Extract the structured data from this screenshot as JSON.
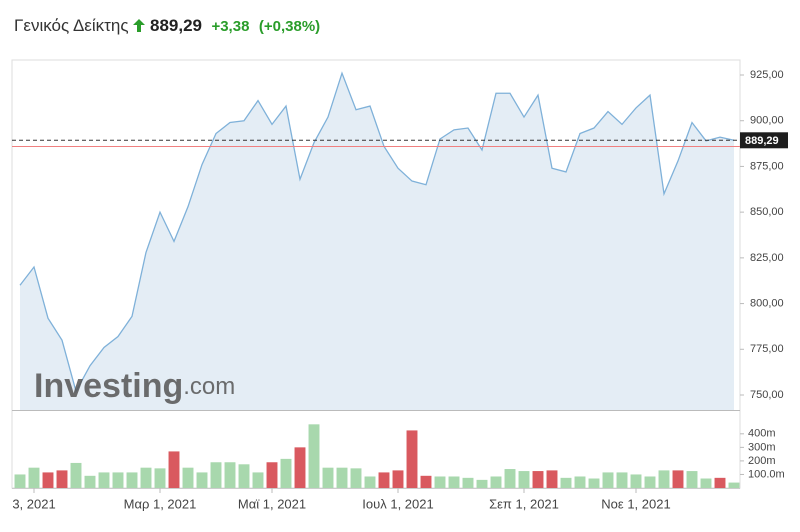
{
  "header": {
    "title": "Γενικός Δείκτης",
    "price": "889,29",
    "change": "+3,38",
    "change_pct": "(+0,38%)"
  },
  "watermark": {
    "brand": "Investing",
    "suffix": ".com"
  },
  "chart_data": [
    {
      "type": "area-line",
      "color": "#7fb1d9",
      "fill": "#e4edf5",
      "categories": [
        null,
        "3, 2021",
        null,
        null,
        null,
        null,
        null,
        null,
        null,
        null,
        "Μαρ 1, 2021",
        null,
        null,
        null,
        null,
        null,
        null,
        null,
        "Μαϊ 1, 2021",
        null,
        null,
        null,
        null,
        null,
        null,
        null,
        null,
        "Ιουλ 1, 2021",
        null,
        null,
        null,
        null,
        null,
        null,
        null,
        null,
        "Σεπ 1, 2021",
        null,
        null,
        null,
        null,
        null,
        null,
        null,
        "Νοε 1, 2021",
        null,
        null,
        null,
        null,
        null,
        null,
        null
      ],
      "values": [
        810,
        820,
        792,
        780,
        752,
        766,
        776,
        782,
        793,
        828,
        850,
        834,
        853,
        876,
        893,
        899,
        900,
        911,
        898,
        908,
        868,
        888,
        902,
        926,
        906,
        908,
        886,
        874,
        867,
        865,
        890,
        895,
        896,
        884,
        915,
        915,
        902,
        914,
        874,
        872,
        893,
        896,
        905,
        898,
        907,
        914,
        860,
        878,
        899,
        889,
        891,
        889.29
      ],
      "ylim": [
        741.8,
        933.2
      ],
      "yticks": [
        {
          "value": 750,
          "label": "750,00"
        },
        {
          "value": 775,
          "label": "775,00"
        },
        {
          "value": 800,
          "label": "800,00"
        },
        {
          "value": 825,
          "label": "825,00"
        },
        {
          "value": 850,
          "label": "850,00"
        },
        {
          "value": 875,
          "label": "875,00"
        },
        {
          "value": 900,
          "label": "900,00"
        },
        {
          "value": 925,
          "label": "925,00"
        }
      ],
      "grid": false,
      "last": {
        "value": 889.29,
        "label": "889,29"
      },
      "previous_close": 885.91,
      "previous_close_color": "#f08080"
    },
    {
      "type": "bar",
      "values": [
        100,
        150,
        115,
        130,
        185,
        90,
        115,
        115,
        115,
        150,
        145,
        270,
        150,
        115,
        190,
        190,
        175,
        115,
        190,
        215,
        300,
        470,
        150,
        150,
        145,
        85,
        115,
        130,
        425,
        90,
        85,
        85,
        75,
        60,
        85,
        140,
        125,
        125,
        130,
        75,
        85,
        70,
        115,
        115,
        100,
        85,
        130,
        130,
        125,
        70,
        75,
        40
      ],
      "colors": [
        "#a8d8ad",
        "#a8d8ad",
        "#d9595f",
        "#d9595f",
        "#a8d8ad",
        "#a8d8ad",
        "#a8d8ad",
        "#a8d8ad",
        "#a8d8ad",
        "#a8d8ad",
        "#a8d8ad",
        "#d9595f",
        "#a8d8ad",
        "#a8d8ad",
        "#a8d8ad",
        "#a8d8ad",
        "#a8d8ad",
        "#a8d8ad",
        "#d9595f",
        "#a8d8ad",
        "#d9595f",
        "#a8d8ad",
        "#a8d8ad",
        "#a8d8ad",
        "#a8d8ad",
        "#a8d8ad",
        "#d9595f",
        "#d9595f",
        "#d9595f",
        "#d9595f",
        "#a8d8ad",
        "#a8d8ad",
        "#a8d8ad",
        "#a8d8ad",
        "#a8d8ad",
        "#a8d8ad",
        "#a8d8ad",
        "#d9595f",
        "#d9595f",
        "#a8d8ad",
        "#a8d8ad",
        "#a8d8ad",
        "#a8d8ad",
        "#a8d8ad",
        "#a8d8ad",
        "#a8d8ad",
        "#a8d8ad",
        "#d9595f",
        "#a8d8ad",
        "#a8d8ad",
        "#d9595f",
        "#a8d8ad"
      ],
      "ylim": [
        0,
        561
      ],
      "yticks": [
        {
          "value": 100,
          "label": "100.0m"
        },
        {
          "value": 200,
          "label": "200m"
        },
        {
          "value": 300,
          "label": "300m"
        },
        {
          "value": 400,
          "label": "400m"
        }
      ]
    }
  ]
}
